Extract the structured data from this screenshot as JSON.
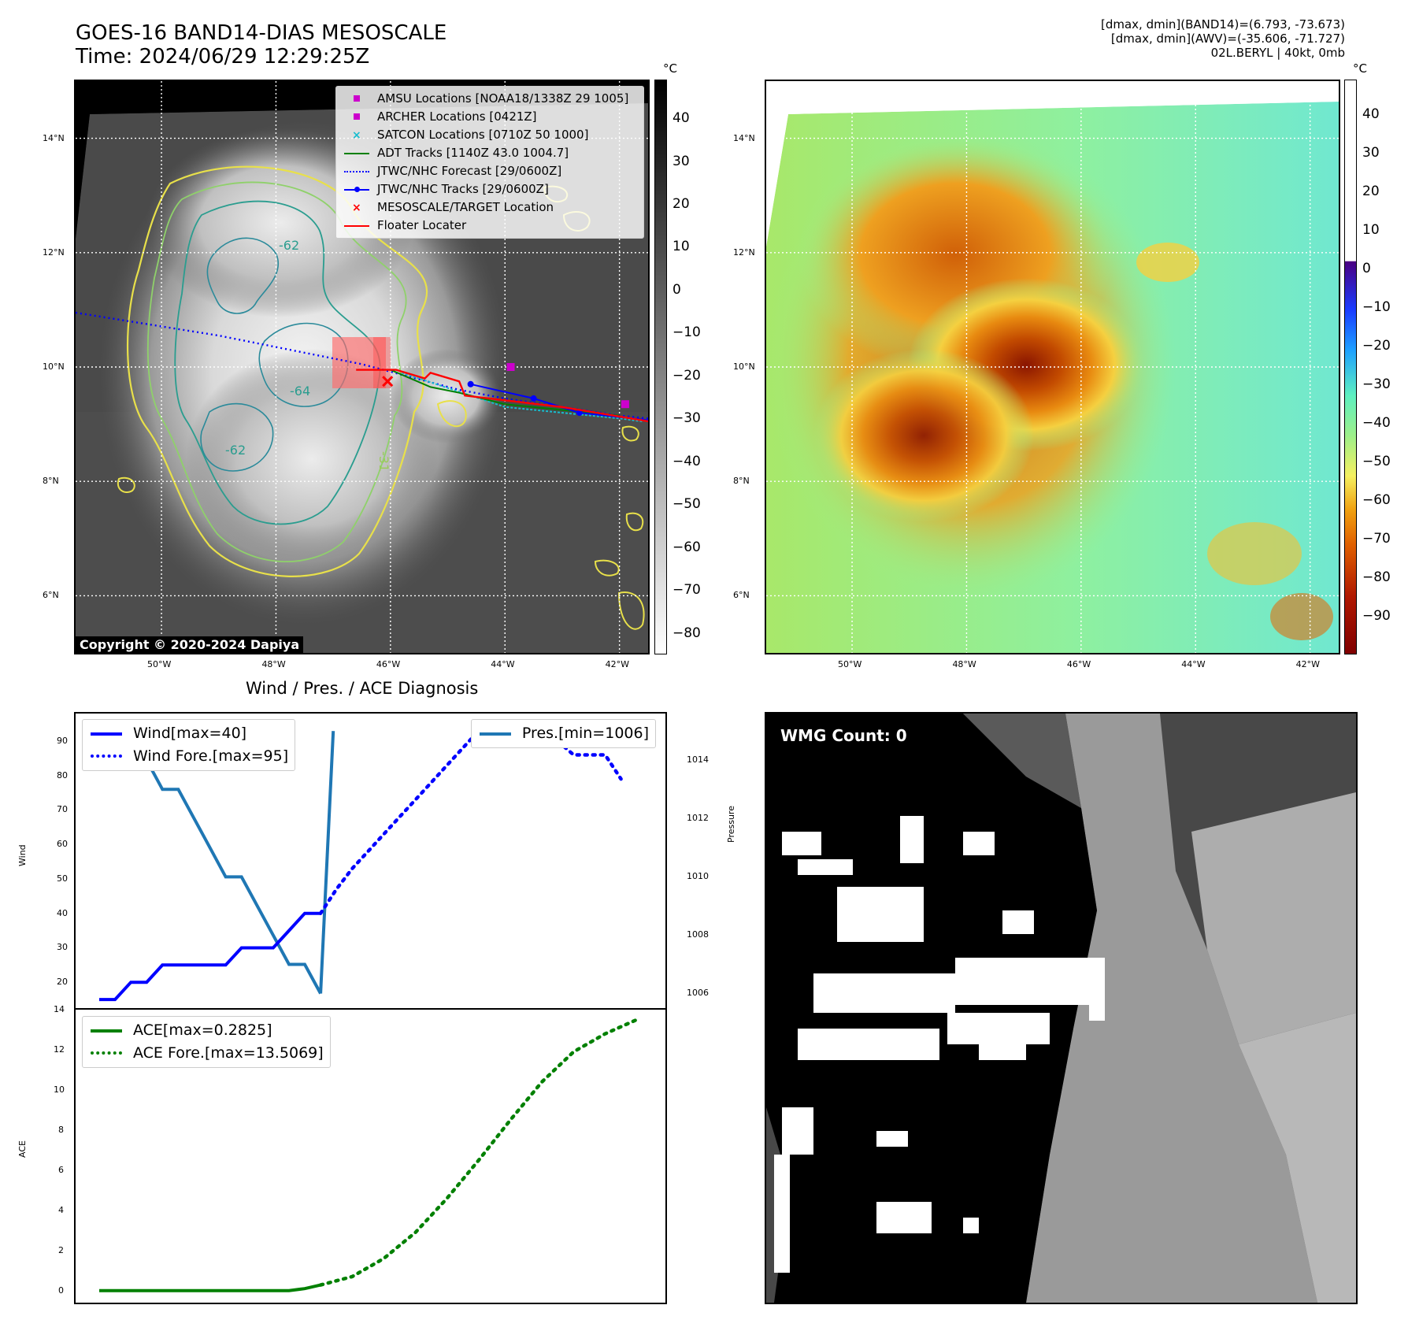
{
  "header": {
    "title_line1": "GOES-16 BAND14-DIAS MESOSCALE",
    "title_line2": "Time: 2024/06/29 12:29:25Z",
    "info_line1": "[dmax, dmin](BAND14)=(6.793, -73.673)",
    "info_line2": "[dmax, dmin](AWV)=(-35.606, -71.727)",
    "info_line3": "02L.BERYL | 40kt, 0mb"
  },
  "map_axes": {
    "lon_ticks": [
      "50°W",
      "48°W",
      "46°W",
      "44°W",
      "42°W"
    ],
    "lat_ticks": [
      "14°N",
      "12°N",
      "10°N",
      "8°N",
      "6°N"
    ],
    "lon_range": [
      -51.5,
      -41.5
    ],
    "lat_range": [
      5.0,
      15.0
    ]
  },
  "left_map": {
    "copyright": "Copyright © 2020-2024 Dapiya",
    "contour_labels": [
      "-62",
      "-64",
      "-62",
      "-31"
    ],
    "colorbar": {
      "unit": "°C",
      "ticks": [
        "40",
        "30",
        "20",
        "10",
        "0",
        "−10",
        "−20",
        "−30",
        "−40",
        "−50",
        "−60",
        "−70",
        "−80"
      ],
      "range": [
        -85,
        49
      ]
    },
    "legend": [
      {
        "label": "AMSU Locations [NOAA18/1338Z 29 1005]",
        "color": "#cc00cc",
        "kind": "square"
      },
      {
        "label": "ARCHER Locations [0421Z]",
        "color": "#cc00cc",
        "kind": "square"
      },
      {
        "label": "SATCON Locations [0710Z 50 1000]",
        "color": "#17becf",
        "kind": "x"
      },
      {
        "label": "ADT Tracks [1140Z 43.0 1004.7]",
        "color": "#008000",
        "kind": "line"
      },
      {
        "label": "JTWC/NHC Forecast [29/0600Z]",
        "color": "#0000ff",
        "kind": "dotted"
      },
      {
        "label": "JTWC/NHC Tracks [29/0600Z]",
        "color": "#0000ff",
        "kind": "line-dot"
      },
      {
        "label": "MESOSCALE/TARGET Location",
        "color": "#ff0000",
        "kind": "x"
      },
      {
        "label": "Floater Locater",
        "color": "#ff0000",
        "kind": "line"
      }
    ],
    "forecast_track": [
      [
        -51.5,
        10.95
      ],
      [
        -49.0,
        10.55
      ],
      [
        -46.5,
        10.05
      ],
      [
        -44.8,
        9.6
      ],
      [
        -44.0,
        9.45
      ],
      [
        -42.0,
        9.15
      ],
      [
        -41.5,
        9.1
      ]
    ],
    "best_track": [
      [
        -44.6,
        9.7
      ],
      [
        -43.5,
        9.45
      ],
      [
        -42.7,
        9.2
      ],
      [
        -41.5,
        9.07
      ]
    ],
    "adt_track": [
      [
        -46.0,
        9.95
      ],
      [
        -45.3,
        9.65
      ],
      [
        -44.8,
        9.55
      ],
      [
        -44.0,
        9.35
      ],
      [
        -42.0,
        9.15
      ]
    ],
    "satcon_track": [
      [
        -45.8,
        9.9
      ],
      [
        -44.0,
        9.3
      ],
      [
        -42.0,
        9.1
      ],
      [
        -41.6,
        9.05
      ]
    ],
    "floater_track": [
      [
        -46.6,
        9.95
      ],
      [
        -45.9,
        9.95
      ],
      [
        -45.4,
        9.8
      ],
      [
        -45.3,
        9.9
      ],
      [
        -44.8,
        9.75
      ],
      [
        -44.7,
        9.5
      ],
      [
        -43.0,
        9.3
      ],
      [
        -41.8,
        9.1
      ],
      [
        -41.5,
        9.05
      ]
    ],
    "amsu_points": [
      [
        -43.9,
        10.0
      ],
      [
        -41.9,
        9.35
      ]
    ],
    "target_point": [
      -46.05,
      9.75
    ]
  },
  "right_map": {
    "colorbar": {
      "unit": "°C",
      "ticks": [
        "40",
        "30",
        "20",
        "10",
        "0",
        "−10",
        "−20",
        "−30",
        "−40",
        "−50",
        "−60",
        "−70",
        "−80",
        "−90"
      ],
      "range": [
        -100,
        49
      ]
    }
  },
  "intensity_panel": {
    "title": "Wind / Pres. / ACE Diagnosis",
    "wind_ylabel": "Wind",
    "pres_ylabel": "Pressure",
    "wind_yticks": [
      20,
      30,
      40,
      50,
      60,
      70,
      80,
      90
    ],
    "pres_yticks": [
      1006,
      1008,
      1010,
      1012,
      1014
    ],
    "wind_ylim": [
      12.5,
      98
    ],
    "pres_ylim": [
      1005.5,
      1015.6
    ],
    "x_range": [
      0,
      35
    ],
    "legend_wind": [
      {
        "label": "Wind[max=40]",
        "kind": "solid",
        "color": "#0000ff"
      },
      {
        "label": "Wind Fore.[max=95]",
        "kind": "dotted",
        "color": "#0000ff"
      }
    ],
    "legend_pres": [
      {
        "label": "Pres.[min=1006]",
        "kind": "solid",
        "color": "#1f77b4"
      }
    ]
  },
  "ace_panel": {
    "ylabel": "ACE",
    "yticks": [
      0,
      2,
      4,
      6,
      8,
      10,
      12,
      14
    ],
    "ylim": [
      -0.6,
      14
    ],
    "x_range": [
      0,
      35
    ],
    "legend": [
      {
        "label": "ACE[max=0.2825]",
        "kind": "solid",
        "color": "#008000"
      },
      {
        "label": "ACE Fore.[max=13.5069]",
        "kind": "dotted",
        "color": "#008000"
      }
    ]
  },
  "wmg_panel": {
    "label": "WMG Count: 0"
  },
  "chart_data": [
    {
      "type": "line",
      "title": "Wind / Pres. / ACE Diagnosis",
      "ylabel": "Wind",
      "series": [
        {
          "name": "Wind[max=40]",
          "x": [
            0,
            1,
            2,
            3,
            4,
            5,
            6,
            7,
            8,
            9,
            10,
            11,
            12,
            13,
            14
          ],
          "values": [
            15,
            15,
            20,
            20,
            25,
            25,
            25,
            25,
            25,
            30,
            30,
            30,
            35,
            40,
            40
          ]
        },
        {
          "name": "Wind Fore.[max=95]",
          "x": [
            14,
            15,
            16,
            17,
            18,
            19,
            20,
            21,
            22,
            23,
            24,
            25,
            26,
            27,
            28,
            29,
            30,
            31,
            32,
            33
          ],
          "values": [
            40,
            47,
            53,
            58,
            63,
            68,
            73,
            78,
            83,
            88,
            93,
            95,
            95,
            95,
            95,
            90,
            86,
            86,
            86,
            79
          ]
        }
      ]
    },
    {
      "type": "line",
      "ylabel": "Pressure",
      "series": [
        {
          "name": "Pres.[min=1006]",
          "x": [
            0,
            1,
            2,
            3,
            4,
            5,
            6,
            7,
            8,
            9,
            10,
            11,
            12,
            13,
            14
          ],
          "values": [
            1015,
            1015,
            1015,
            1014,
            1013,
            1013,
            1012,
            1011,
            1010,
            1010,
            1009,
            1008,
            1007,
            1007,
            1006
          ]
        },
        {
          "name": "Pres. (recent)",
          "x": [
            14,
            14.8
          ],
          "values": [
            1006,
            1015
          ]
        }
      ]
    },
    {
      "type": "line",
      "ylabel": "ACE",
      "series": [
        {
          "name": "ACE[max=0.2825]",
          "x": [
            0,
            2,
            4,
            6,
            8,
            10,
            12,
            13,
            14
          ],
          "values": [
            0,
            0,
            0,
            0,
            0,
            0,
            0,
            0.1,
            0.28
          ]
        },
        {
          "name": "ACE Fore.[max=13.5069]",
          "x": [
            14,
            16,
            18,
            20,
            22,
            24,
            26,
            28,
            30,
            32,
            34
          ],
          "values": [
            0.28,
            0.7,
            1.6,
            2.9,
            4.6,
            6.5,
            8.5,
            10.4,
            11.9,
            12.8,
            13.5
          ]
        }
      ]
    }
  ]
}
